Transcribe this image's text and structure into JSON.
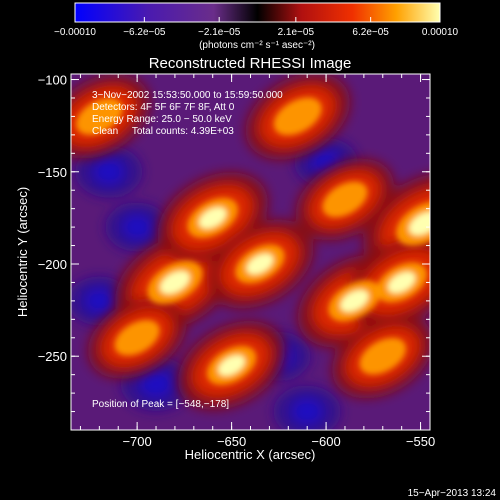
{
  "chart_data": {
    "type": "heatmap",
    "title": "Reconstructed RHESSI Image",
    "xlabel": "Heliocentric X (arcsec)",
    "ylabel": "Heliocentric Y (arcsec)",
    "xlim": [
      -735,
      -545
    ],
    "ylim": [
      -290,
      -97
    ],
    "x_ticks": [
      -700,
      -650,
      -600,
      -550
    ],
    "x_tick_labels": [
      "−700",
      "−650",
      "−600",
      "−550"
    ],
    "y_ticks": [
      -100,
      -150,
      -200,
      -250
    ],
    "y_tick_labels": [
      "−100",
      "−150",
      "−200",
      "−250"
    ],
    "colorbar": {
      "min": -0.0001,
      "max": 0.0001,
      "tick_values": [
        -0.0001,
        -6.2e-05,
        -2.1e-05,
        2.1e-05,
        6.2e-05,
        0.0001
      ],
      "tick_labels": [
        "−0.00010",
        "−6.2e−05",
        "−2.1e−05",
        "2.1e−05",
        "6.2e−05",
        "0.00010"
      ],
      "units": "(photons cm⁻² s⁻¹ asec⁻²)"
    },
    "annotations": [
      "3−Nov−2002 15:53:50.000 to 15:59:50.000",
      "Detectors: 4F 5F 6F 7F 8F, Att 0",
      "Energy Range: 25.0 − 50.0 keV",
      "Clean     Total counts: 4.39E+03"
    ],
    "peak_label": "Position of Peak = [−548,−178]",
    "peak": [
      -548,
      -178
    ],
    "bright_sources": [
      {
        "x": -548,
        "y": -178,
        "value": 1.0
      },
      {
        "x": -680,
        "y": -210,
        "value": 0.95
      },
      {
        "x": -660,
        "y": -175,
        "value": 0.8
      },
      {
        "x": -585,
        "y": -220,
        "value": 0.85
      },
      {
        "x": -560,
        "y": -210,
        "value": 0.8
      },
      {
        "x": -635,
        "y": -200,
        "value": 0.75
      },
      {
        "x": -615,
        "y": -120,
        "value": 0.7
      },
      {
        "x": -650,
        "y": -255,
        "value": 0.75
      },
      {
        "x": -720,
        "y": -120,
        "value": 0.65
      },
      {
        "x": -590,
        "y": -165,
        "value": 0.6
      },
      {
        "x": -700,
        "y": -240,
        "value": 0.6
      },
      {
        "x": -570,
        "y": -250,
        "value": 0.65
      }
    ],
    "dark_regions": [
      {
        "x": -715,
        "y": -150,
        "value": -0.7
      },
      {
        "x": -700,
        "y": -180,
        "value": -0.6
      },
      {
        "x": -690,
        "y": -265,
        "value": -0.8
      },
      {
        "x": -625,
        "y": -250,
        "value": -0.6
      },
      {
        "x": -610,
        "y": -280,
        "value": -0.7
      },
      {
        "x": -600,
        "y": -145,
        "value": -0.6
      },
      {
        "x": -720,
        "y": -220,
        "value": -0.6
      }
    ]
  },
  "footer": {
    "timestamp": "15−Apr−2013 13:24"
  }
}
